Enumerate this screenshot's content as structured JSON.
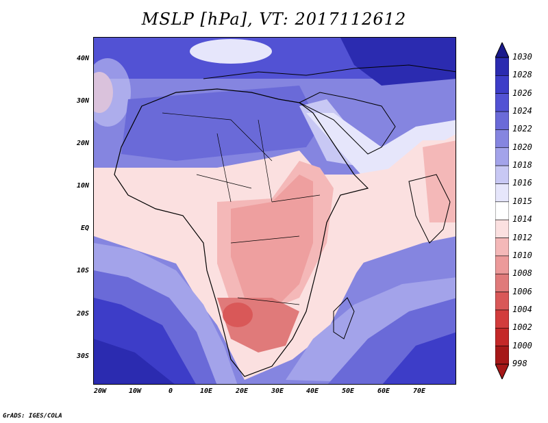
{
  "title": "MSLP [hPa], VT: 2017112612",
  "credit": "GrADS: IGES/COLA",
  "map": {
    "lat_labels": [
      "40N",
      "30N",
      "20N",
      "10N",
      "EQ",
      "10S",
      "20S",
      "30S"
    ],
    "lon_labels": [
      "20W",
      "10W",
      "0",
      "10E",
      "20E",
      "30E",
      "40E",
      "50E",
      "60E",
      "70E"
    ],
    "lon_range": [
      -22,
      80
    ],
    "lat_range": [
      -37,
      45
    ]
  },
  "colorbar": {
    "levels": [
      "1030",
      "1028",
      "1026",
      "1024",
      "1022",
      "1020",
      "1018",
      "1016",
      "1015",
      "1014",
      "1012",
      "1010",
      "1008",
      "1006",
      "1004",
      "1002",
      "1000",
      "998"
    ],
    "colors": [
      "#1a1a8c",
      "#2b2bb0",
      "#3d3dc8",
      "#5252d4",
      "#6a6ad8",
      "#8585e0",
      "#a3a3ea",
      "#c8c8f4",
      "#e6e6fb",
      "#ffffff",
      "#fbe0e0",
      "#f4b8b8",
      "#ec9a9a",
      "#e07a7a",
      "#d95858",
      "#d23c3c",
      "#c42828",
      "#a61818"
    ]
  }
}
